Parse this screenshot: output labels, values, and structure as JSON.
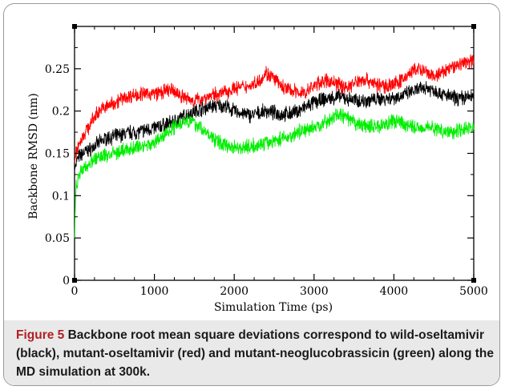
{
  "figure": {
    "label": "Figure 5",
    "caption": "Backbone root mean square deviations correspond to wild-oseltamivir (black), mutant-oseltamivir (red) and mutant-neoglucobrassicin (green) along the MD simulation at 300k."
  },
  "chart_data": {
    "type": "line",
    "title": "",
    "xlabel": "Simulation Time (ps)",
    "ylabel": "Backbone RMSD (nm)",
    "xlim": [
      0,
      5000
    ],
    "ylim": [
      0,
      0.3
    ],
    "xticks": [
      "0",
      "1000",
      "2000",
      "3000",
      "4000",
      "5000"
    ],
    "yticks": [
      "0",
      "0.05",
      "0.1",
      "0.15",
      "0.2",
      "0.25"
    ],
    "grid": false,
    "series": [
      {
        "color": "#000000",
        "x": [
          0,
          20,
          50,
          100,
          200,
          300,
          400,
          500,
          600,
          700,
          800,
          900,
          1000,
          1100,
          1200,
          1300,
          1400,
          1500,
          1600,
          1700,
          1800,
          1900,
          2000,
          2100,
          2200,
          2300,
          2400,
          2500,
          2600,
          2700,
          2800,
          2900,
          3000,
          3100,
          3200,
          3300,
          3400,
          3500,
          3600,
          3700,
          3800,
          3900,
          4000,
          4100,
          4200,
          4300,
          4400,
          4500,
          4600,
          4700,
          4800,
          4900,
          5000
        ],
        "values": [
          0.13,
          0.14,
          0.145,
          0.15,
          0.155,
          0.162,
          0.168,
          0.17,
          0.172,
          0.175,
          0.175,
          0.178,
          0.18,
          0.183,
          0.186,
          0.19,
          0.195,
          0.2,
          0.203,
          0.205,
          0.207,
          0.205,
          0.2,
          0.197,
          0.195,
          0.197,
          0.2,
          0.198,
          0.196,
          0.197,
          0.2,
          0.205,
          0.21,
          0.213,
          0.215,
          0.217,
          0.215,
          0.213,
          0.212,
          0.213,
          0.214,
          0.215,
          0.216,
          0.218,
          0.222,
          0.225,
          0.228,
          0.225,
          0.22,
          0.217,
          0.215,
          0.216,
          0.218
        ]
      },
      {
        "color": "#ff0000",
        "x": [
          0,
          20,
          50,
          100,
          200,
          300,
          400,
          500,
          600,
          700,
          800,
          900,
          1000,
          1100,
          1200,
          1300,
          1400,
          1500,
          1600,
          1700,
          1800,
          1900,
          2000,
          2100,
          2200,
          2300,
          2400,
          2500,
          2600,
          2700,
          2800,
          2900,
          3000,
          3100,
          3200,
          3300,
          3400,
          3500,
          3600,
          3700,
          3800,
          3900,
          4000,
          4100,
          4200,
          4300,
          4400,
          4500,
          4600,
          4700,
          4800,
          4900,
          5000
        ],
        "values": [
          0.14,
          0.15,
          0.16,
          0.17,
          0.185,
          0.2,
          0.205,
          0.21,
          0.215,
          0.218,
          0.22,
          0.22,
          0.221,
          0.222,
          0.225,
          0.22,
          0.215,
          0.212,
          0.215,
          0.218,
          0.22,
          0.223,
          0.227,
          0.228,
          0.23,
          0.235,
          0.245,
          0.238,
          0.228,
          0.225,
          0.222,
          0.222,
          0.23,
          0.235,
          0.235,
          0.232,
          0.228,
          0.232,
          0.238,
          0.236,
          0.23,
          0.23,
          0.232,
          0.236,
          0.245,
          0.25,
          0.245,
          0.24,
          0.245,
          0.25,
          0.255,
          0.258,
          0.26
        ]
      },
      {
        "color": "#00ee00",
        "x": [
          0,
          10,
          20,
          50,
          100,
          200,
          300,
          400,
          500,
          600,
          700,
          800,
          900,
          1000,
          1100,
          1200,
          1300,
          1400,
          1500,
          1600,
          1700,
          1800,
          1900,
          2000,
          2100,
          2200,
          2300,
          2400,
          2500,
          2600,
          2700,
          2800,
          2900,
          3000,
          3100,
          3200,
          3300,
          3400,
          3500,
          3600,
          3700,
          3800,
          3900,
          4000,
          4100,
          4200,
          4300,
          4400,
          4500,
          4600,
          4700,
          4800,
          4900,
          5000
        ],
        "values": [
          0.05,
          0.09,
          0.11,
          0.125,
          0.13,
          0.14,
          0.145,
          0.148,
          0.15,
          0.153,
          0.155,
          0.158,
          0.16,
          0.162,
          0.17,
          0.178,
          0.185,
          0.19,
          0.186,
          0.178,
          0.17,
          0.163,
          0.16,
          0.158,
          0.157,
          0.158,
          0.16,
          0.162,
          0.165,
          0.168,
          0.17,
          0.175,
          0.178,
          0.18,
          0.185,
          0.19,
          0.196,
          0.192,
          0.186,
          0.183,
          0.182,
          0.182,
          0.185,
          0.188,
          0.186,
          0.182,
          0.18,
          0.182,
          0.18,
          0.177,
          0.175,
          0.178,
          0.18,
          0.18
        ]
      }
    ]
  }
}
